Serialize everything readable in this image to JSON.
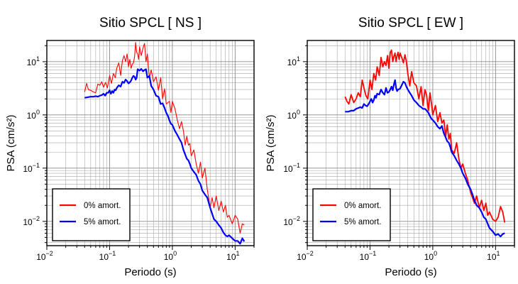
{
  "figure": {
    "background": "#ffffff"
  },
  "chart_data": [
    {
      "type": "line",
      "title": "Sitio SPCL [ NS ]",
      "xlabel": "Periodo (s)",
      "ylabel": "PSA (cm/s²)",
      "xscale": "log",
      "yscale": "log",
      "xlim": [
        0.01,
        20
      ],
      "ylim": [
        0.0035,
        25
      ],
      "grid": true,
      "legend": "lower-left",
      "x_ticks": [
        {
          "value": 0.01,
          "base": "10",
          "exp": "−2"
        },
        {
          "value": 0.1,
          "base": "10",
          "exp": "−1"
        },
        {
          "value": 1,
          "base": "10",
          "exp": "0"
        },
        {
          "value": 10,
          "base": "10",
          "exp": "1"
        }
      ],
      "y_ticks": [
        {
          "value": 0.01,
          "base": "10",
          "exp": "−2"
        },
        {
          "value": 0.1,
          "base": "10",
          "exp": "−1"
        },
        {
          "value": 1,
          "base": "10",
          "exp": "0"
        },
        {
          "value": 10,
          "base": "10",
          "exp": "1"
        }
      ],
      "series": [
        {
          "name": "0% amort.",
          "color": "#ff0000",
          "x": [
            0.04,
            0.043,
            0.046,
            0.05,
            0.055,
            0.06,
            0.065,
            0.07,
            0.075,
            0.08,
            0.086,
            0.092,
            0.1,
            0.107,
            0.115,
            0.123,
            0.13,
            0.14,
            0.15,
            0.16,
            0.17,
            0.18,
            0.19,
            0.2,
            0.21,
            0.22,
            0.23,
            0.24,
            0.25,
            0.26,
            0.27,
            0.28,
            0.29,
            0.3,
            0.32,
            0.34,
            0.36,
            0.38,
            0.4,
            0.43,
            0.46,
            0.5,
            0.55,
            0.6,
            0.65,
            0.7,
            0.75,
            0.8,
            0.85,
            0.9,
            0.95,
            1.0,
            1.1,
            1.2,
            1.3,
            1.4,
            1.5,
            1.6,
            1.7,
            1.8,
            1.9,
            2.0,
            2.2,
            2.4,
            2.6,
            2.8,
            3.0,
            3.3,
            3.6,
            4.0,
            4.3,
            4.6,
            5.0,
            5.5,
            6.0,
            6.5,
            7.0,
            7.5,
            8.0,
            9.0,
            10.0,
            11.0,
            12.0,
            13.0,
            14.0
          ],
          "y": [
            2.7,
            3.9,
            3.0,
            2.9,
            2.7,
            2.6,
            3.8,
            3.6,
            4.2,
            3.3,
            4.1,
            3.2,
            5.5,
            3.9,
            6.0,
            5.0,
            7.5,
            9.5,
            5.5,
            10.5,
            13.0,
            10.0,
            14.0,
            8.0,
            11.0,
            7.5,
            9.0,
            9.5,
            12.5,
            23.0,
            15.0,
            14.0,
            11.0,
            19.0,
            13.0,
            18.0,
            22.0,
            10.0,
            14.0,
            4.9,
            7.0,
            4.2,
            5.2,
            2.9,
            5.0,
            2.0,
            3.1,
            1.6,
            1.7,
            1.8,
            1.1,
            1.8,
            1.3,
            0.8,
            0.55,
            0.75,
            0.5,
            0.27,
            0.4,
            0.27,
            0.29,
            0.17,
            0.22,
            0.12,
            0.08,
            0.13,
            0.065,
            0.1,
            0.04,
            0.018,
            0.028,
            0.018,
            0.03,
            0.016,
            0.024,
            0.015,
            0.02,
            0.012,
            0.013,
            0.009,
            0.013,
            0.011,
            0.006,
            0.009,
            0.0085
          ]
        },
        {
          "name": "5% amort.",
          "color": "#0000ff",
          "x": [
            0.04,
            0.045,
            0.05,
            0.055,
            0.06,
            0.065,
            0.07,
            0.075,
            0.08,
            0.085,
            0.09,
            0.095,
            0.1,
            0.105,
            0.11,
            0.115,
            0.12,
            0.125,
            0.13,
            0.14,
            0.15,
            0.16,
            0.17,
            0.18,
            0.19,
            0.2,
            0.21,
            0.22,
            0.23,
            0.24,
            0.25,
            0.26,
            0.27,
            0.28,
            0.3,
            0.32,
            0.34,
            0.36,
            0.38,
            0.4,
            0.43,
            0.46,
            0.5,
            0.55,
            0.6,
            0.65,
            0.7,
            0.75,
            0.8,
            0.85,
            0.9,
            0.95,
            1.0,
            1.1,
            1.2,
            1.3,
            1.4,
            1.5,
            1.6,
            1.7,
            1.8,
            1.9,
            2.0,
            2.2,
            2.4,
            2.6,
            2.8,
            3.0,
            3.3,
            3.6,
            4.0,
            4.3,
            4.6,
            5.0,
            5.5,
            6.0,
            6.5,
            7.0,
            7.5,
            8.0,
            9.0,
            10.0,
            11.0,
            12.0,
            13.0,
            14.0
          ],
          "y": [
            2.1,
            2.15,
            2.2,
            2.2,
            2.25,
            2.2,
            2.3,
            2.35,
            2.5,
            2.3,
            2.6,
            2.6,
            2.9,
            2.5,
            2.8,
            2.6,
            3.0,
            2.9,
            3.2,
            3.6,
            3.4,
            4.2,
            4.0,
            4.6,
            4.3,
            3.9,
            4.1,
            4.4,
            5.0,
            5.4,
            5.2,
            4.6,
            5.0,
            7.2,
            6.8,
            7.3,
            6.6,
            7.0,
            7.2,
            5.0,
            5.4,
            3.5,
            3.0,
            2.3,
            2.2,
            1.6,
            1.65,
            1.35,
            1.1,
            0.95,
            0.78,
            0.68,
            0.65,
            0.5,
            0.42,
            0.35,
            0.3,
            0.22,
            0.18,
            0.15,
            0.14,
            0.12,
            0.1,
            0.085,
            0.075,
            0.058,
            0.05,
            0.038,
            0.032,
            0.028,
            0.018,
            0.014,
            0.011,
            0.01,
            0.0085,
            0.0075,
            0.0062,
            0.0055,
            0.0052,
            0.0055,
            0.0048,
            0.0043,
            0.0043,
            0.0038,
            0.0048,
            0.0042
          ]
        }
      ]
    },
    {
      "type": "line",
      "title": "Sitio SPCL [ EW ]",
      "xlabel": "Periodo (s)",
      "ylabel": "PSA (cm/s²)",
      "xscale": "log",
      "yscale": "log",
      "xlim": [
        0.01,
        20
      ],
      "ylim": [
        0.0035,
        25
      ],
      "grid": true,
      "legend": "lower-left",
      "x_ticks": [
        {
          "value": 0.01,
          "base": "10",
          "exp": "−2"
        },
        {
          "value": 0.1,
          "base": "10",
          "exp": "−1"
        },
        {
          "value": 1,
          "base": "10",
          "exp": "0"
        },
        {
          "value": 10,
          "base": "10",
          "exp": "1"
        }
      ],
      "y_ticks": [
        {
          "value": 0.01,
          "base": "10",
          "exp": "−2"
        },
        {
          "value": 0.1,
          "base": "10",
          "exp": "−1"
        },
        {
          "value": 1,
          "base": "10",
          "exp": "0"
        },
        {
          "value": 10,
          "base": "10",
          "exp": "1"
        }
      ],
      "series": [
        {
          "name": "0% amort.",
          "color": "#ff0000",
          "x": [
            0.04,
            0.043,
            0.046,
            0.05,
            0.055,
            0.06,
            0.065,
            0.07,
            0.075,
            0.08,
            0.086,
            0.092,
            0.1,
            0.107,
            0.115,
            0.123,
            0.13,
            0.14,
            0.15,
            0.16,
            0.17,
            0.18,
            0.19,
            0.2,
            0.21,
            0.22,
            0.23,
            0.24,
            0.25,
            0.26,
            0.27,
            0.28,
            0.29,
            0.3,
            0.32,
            0.34,
            0.36,
            0.38,
            0.4,
            0.43,
            0.46,
            0.5,
            0.55,
            0.6,
            0.65,
            0.7,
            0.75,
            0.8,
            0.85,
            0.9,
            0.95,
            1.0,
            1.1,
            1.2,
            1.3,
            1.4,
            1.5,
            1.6,
            1.7,
            1.8,
            1.9,
            2.0,
            2.2,
            2.4,
            2.6,
            2.8,
            3.0,
            3.3,
            3.6,
            4.0,
            4.3,
            4.6,
            5.0,
            5.5,
            6.0,
            6.5,
            7.0,
            7.5,
            8.0,
            9.0,
            10.0,
            11.0,
            12.0,
            13.0,
            14.0
          ],
          "y": [
            2.2,
            1.8,
            1.6,
            2.4,
            1.7,
            2.0,
            2.6,
            2.2,
            4.5,
            3.2,
            2.3,
            2.0,
            4.5,
            3.0,
            6.0,
            4.5,
            8.0,
            5.5,
            12.0,
            8.0,
            10.0,
            8.5,
            13.0,
            7.5,
            15.0,
            16.5,
            10.0,
            12.5,
            14.5,
            10.0,
            13.0,
            15.0,
            11.0,
            14.5,
            12.0,
            9.5,
            13.5,
            10.0,
            6.0,
            3.5,
            6.5,
            4.0,
            3.5,
            2.0,
            3.4,
            1.5,
            3.0,
            2.3,
            1.2,
            2.6,
            1.7,
            1.0,
            1.5,
            0.75,
            1.1,
            0.7,
            0.8,
            0.4,
            0.65,
            0.35,
            0.45,
            0.22,
            0.19,
            0.3,
            0.15,
            0.1,
            0.12,
            0.08,
            0.06,
            0.035,
            0.028,
            0.022,
            0.03,
            0.018,
            0.025,
            0.016,
            0.022,
            0.013,
            0.015,
            0.011,
            0.01,
            0.012,
            0.019,
            0.015,
            0.0095
          ]
        },
        {
          "name": "5% amort.",
          "color": "#0000ff",
          "x": [
            0.04,
            0.045,
            0.05,
            0.055,
            0.06,
            0.065,
            0.07,
            0.075,
            0.08,
            0.085,
            0.09,
            0.095,
            0.1,
            0.105,
            0.11,
            0.115,
            0.12,
            0.125,
            0.13,
            0.14,
            0.15,
            0.16,
            0.17,
            0.18,
            0.19,
            0.2,
            0.21,
            0.22,
            0.23,
            0.24,
            0.25,
            0.26,
            0.27,
            0.28,
            0.3,
            0.32,
            0.34,
            0.36,
            0.38,
            0.4,
            0.43,
            0.46,
            0.5,
            0.55,
            0.6,
            0.65,
            0.7,
            0.75,
            0.8,
            0.85,
            0.9,
            0.95,
            1.0,
            1.1,
            1.2,
            1.3,
            1.4,
            1.5,
            1.6,
            1.7,
            1.8,
            1.9,
            2.0,
            2.2,
            2.4,
            2.6,
            2.8,
            3.0,
            3.3,
            3.6,
            4.0,
            4.3,
            4.6,
            5.0,
            5.5,
            6.0,
            6.5,
            7.0,
            7.5,
            8.0,
            9.0,
            10.0,
            11.0,
            12.0,
            13.0,
            14.0
          ],
          "y": [
            1.15,
            1.15,
            1.2,
            1.2,
            1.3,
            1.35,
            1.4,
            1.35,
            1.6,
            1.5,
            1.45,
            1.6,
            1.8,
            2.0,
            1.7,
            1.9,
            2.3,
            2.1,
            2.5,
            2.4,
            3.0,
            2.6,
            2.4,
            3.2,
            2.6,
            2.7,
            3.0,
            3.4,
            2.9,
            3.7,
            4.5,
            3.2,
            2.8,
            3.0,
            3.1,
            3.6,
            4.2,
            4.0,
            3.4,
            3.0,
            2.6,
            2.3,
            1.9,
            1.7,
            1.5,
            1.4,
            1.3,
            1.3,
            1.2,
            1.1,
            0.95,
            0.85,
            0.8,
            0.7,
            0.6,
            0.55,
            0.62,
            0.45,
            0.38,
            0.32,
            0.3,
            0.25,
            0.2,
            0.17,
            0.14,
            0.12,
            0.1,
            0.08,
            0.065,
            0.05,
            0.04,
            0.032,
            0.025,
            0.02,
            0.018,
            0.015,
            0.012,
            0.011,
            0.009,
            0.0075,
            0.0065,
            0.0055,
            0.0058,
            0.0052,
            0.0058,
            0.006
          ]
        }
      ]
    }
  ]
}
